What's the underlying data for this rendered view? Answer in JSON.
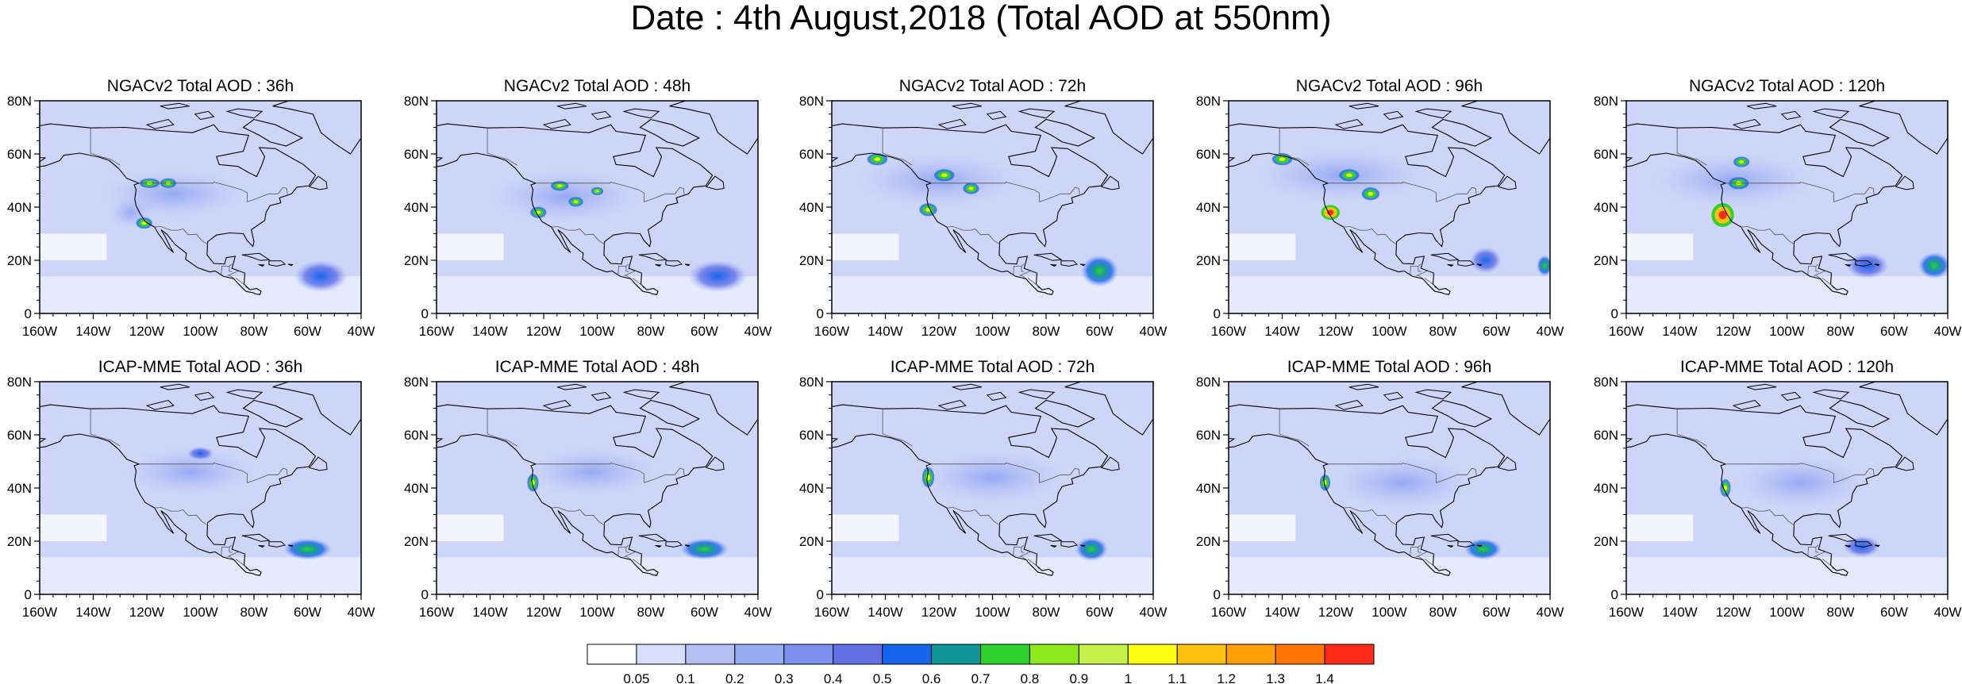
{
  "title": "Date : 4th August,2018 (Total AOD at 550nm)",
  "x_ticks": [
    "160W",
    "140W",
    "120W",
    "100W",
    "80W",
    "60W",
    "40W"
  ],
  "y_ticks": [
    "0",
    "20N",
    "40N",
    "60N",
    "80N"
  ],
  "panels": [
    {
      "title": "NGACv2 Total AOD : 36h"
    },
    {
      "title": "NGACv2 Total AOD : 48h"
    },
    {
      "title": "NGACv2 Total AOD : 72h"
    },
    {
      "title": "NGACv2 Total AOD : 96h"
    },
    {
      "title": "NGACv2 Total AOD : 120h"
    },
    {
      "title": "ICAP-MME Total AOD : 36h"
    },
    {
      "title": "ICAP-MME Total AOD : 48h"
    },
    {
      "title": "ICAP-MME Total AOD : 72h"
    },
    {
      "title": "ICAP-MME Total AOD : 96h"
    },
    {
      "title": "ICAP-MME Total AOD : 120h"
    }
  ],
  "colorbar": {
    "colors": [
      "#ffffff",
      "#d8dffb",
      "#b4c0f4",
      "#95adf5",
      "#7e90ee",
      "#6370e8",
      "#1565ec",
      "#109696",
      "#2fd12f",
      "#8ee81c",
      "#c4f04a",
      "#ffff14",
      "#ffc20a",
      "#ff9f07",
      "#ff7605",
      "#ff2c1a"
    ],
    "labels": [
      "0.05",
      "0.1",
      "0.2",
      "0.3",
      "0.4",
      "0.5",
      "0.6",
      "0.7",
      "0.8",
      "0.9",
      "1",
      "1.1",
      "1.2",
      "1.3",
      "1.4"
    ]
  }
}
